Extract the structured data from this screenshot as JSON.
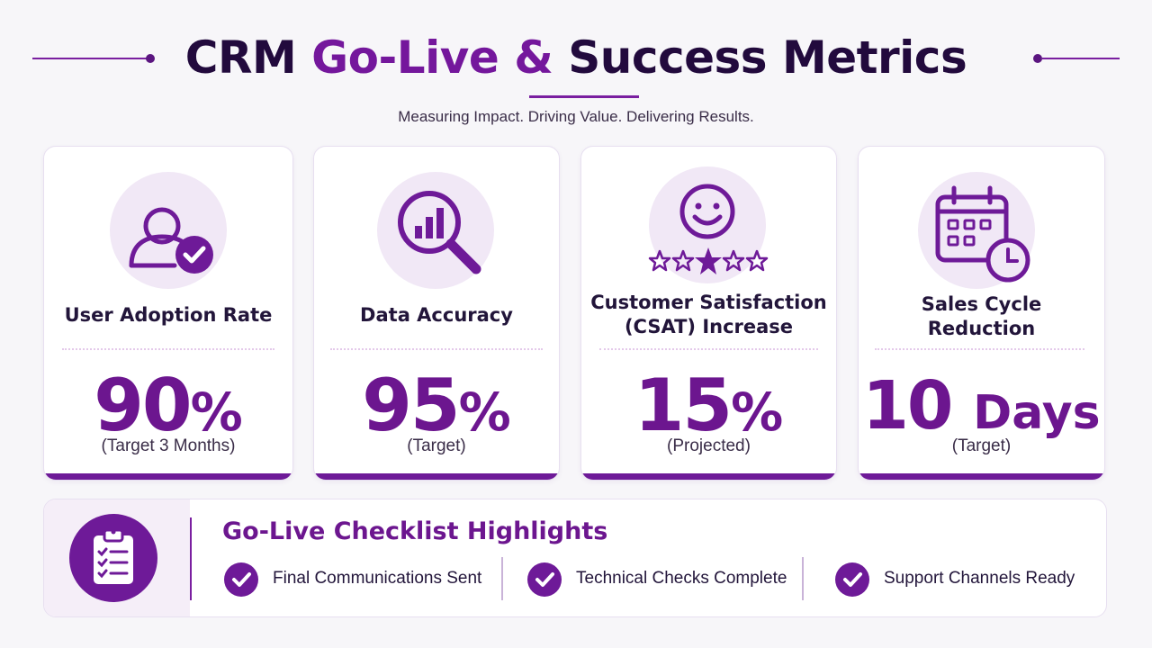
{
  "header": {
    "title_part1": "CRM",
    "title_part2": "Go-Live &",
    "title_part3": "Success Metrics",
    "subtitle": "Measuring Impact. Driving Value. Delivering Results."
  },
  "colors": {
    "accent": "#6e1a98",
    "dark_text": "#220a3d",
    "icon_background": "#f1e8f6"
  },
  "metrics": [
    {
      "icon": "user-check-icon",
      "label": "User Adoption Rate",
      "value": "90",
      "unit": "%",
      "note": "(Target 3 Months)"
    },
    {
      "icon": "magnifier-chart-icon",
      "label": "Data Accuracy",
      "value": "95",
      "unit": "%",
      "note": "(Target)"
    },
    {
      "icon": "smiley-stars-icon",
      "label_line1": "Customer Satisfaction",
      "label_line2": "(CSAT) Increase",
      "value": "15",
      "unit": "%",
      "note": "(Projected)"
    },
    {
      "icon": "calendar-clock-icon",
      "label_line1": "Sales Cycle",
      "label_line2": "Reduction",
      "value": "10",
      "unit": "Days",
      "note": "(Target)"
    }
  ],
  "checklist": {
    "icon": "clipboard-checklist-icon",
    "title": "Go-Live Checklist Highlights",
    "items": [
      {
        "icon": "check-circle-icon",
        "label": "Final Communications Sent"
      },
      {
        "icon": "check-circle-icon",
        "label": "Technical Checks Complete"
      },
      {
        "icon": "check-circle-icon",
        "label": "Support Channels Ready"
      }
    ]
  }
}
